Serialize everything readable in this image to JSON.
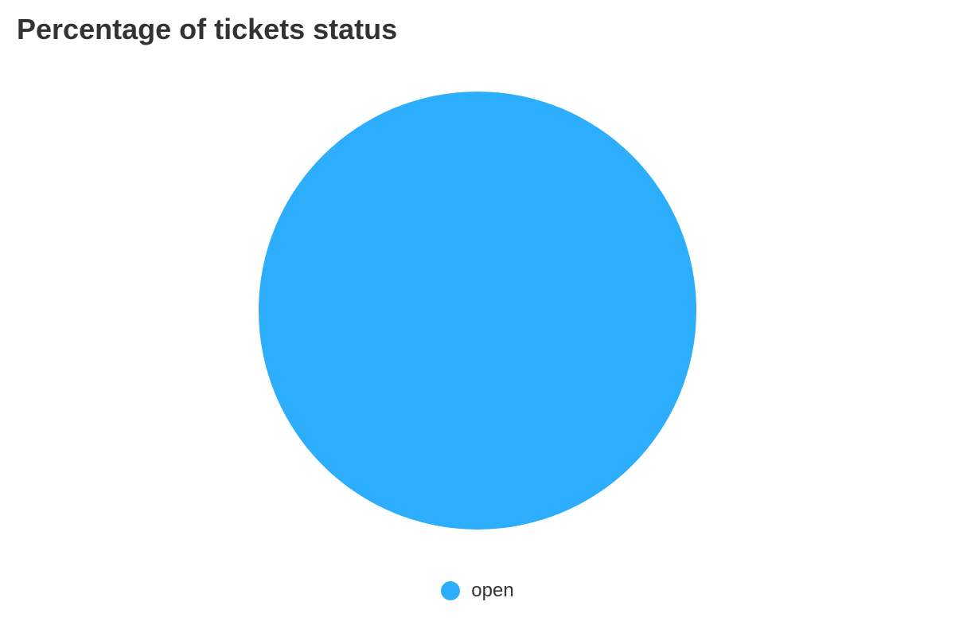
{
  "chart_data": {
    "type": "pie",
    "title": "Percentage of tickets status",
    "slices": [
      {
        "label": "open",
        "value": 100,
        "color": "#2daefd"
      }
    ],
    "legend_position": "bottom"
  }
}
